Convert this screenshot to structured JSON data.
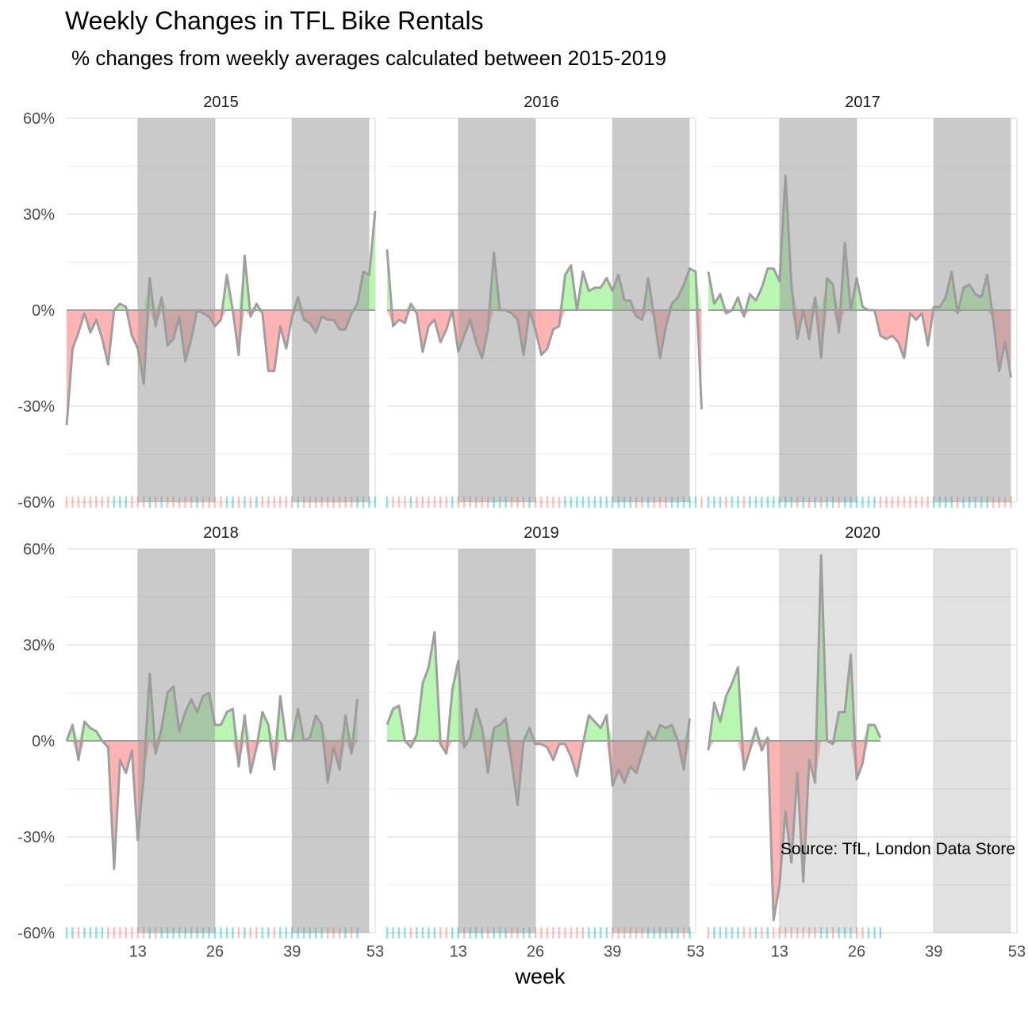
{
  "title": "Weekly Changes in TFL Bike Rentals",
  "subtitle": "% changes from weekly averages calculated between 2015-2019",
  "caption": "Source: TfL, London Data Store",
  "colors": {
    "positive": "#b7f7b0",
    "negative": "#ffb3b3",
    "line": "#9f9f9f",
    "shade": "#9a9a9a",
    "rug_positive": "#00bfc4",
    "rug_negative": "#f8766d",
    "grid": "#ebebeb"
  },
  "chart_data": {
    "type": "area",
    "facet_by": "year",
    "xlabel": "week",
    "ylabel": "",
    "x_ticks": [
      13,
      26,
      39,
      53
    ],
    "xlim": [
      1,
      53
    ],
    "y_ticks": [
      -60,
      -30,
      0,
      30,
      60
    ],
    "y_tick_labels": [
      "-60%",
      "-30%",
      "0%",
      "30%",
      "60%"
    ],
    "ylim": [
      -60,
      60
    ],
    "shaded_week_ranges": [
      [
        13,
        26
      ],
      [
        39,
        52
      ]
    ],
    "rug": "weekly tick marks at -60%, blue when above average and red when below",
    "panels": [
      {
        "year": "2015",
        "values": [
          -36,
          -12,
          -7,
          -1,
          -7,
          -3,
          -9,
          -17,
          0,
          2,
          1,
          -8,
          -12,
          -23,
          10,
          -5,
          4,
          -11,
          -9,
          -2,
          -16,
          -9,
          0,
          -1,
          -2,
          -5,
          -3,
          11,
          0,
          -14,
          17,
          -2,
          2,
          -1,
          -19,
          -19,
          -5,
          -12,
          -2,
          4,
          -3,
          -4,
          -7,
          -2,
          -3,
          -3,
          -6,
          -6,
          -1,
          2,
          12,
          11,
          31
        ]
      },
      {
        "year": "2016",
        "values": [
          19,
          -5,
          -3,
          -4,
          2,
          -1,
          -13,
          -5,
          -3,
          -10,
          -6,
          0,
          -13,
          -8,
          -3,
          -10,
          -15,
          -6,
          18,
          0,
          0,
          -1,
          -3,
          -14,
          0,
          -6,
          -14,
          -12,
          -6,
          -5,
          11,
          14,
          0,
          12,
          6,
          7,
          7,
          10,
          6,
          11,
          3,
          3,
          -2,
          -3,
          10,
          -2,
          -15,
          -5,
          2,
          4,
          8,
          13,
          12,
          -31
        ]
      },
      {
        "year": "2017",
        "values": [
          12,
          2,
          5,
          -1,
          0,
          4,
          -2,
          5,
          3,
          7,
          13,
          13,
          9,
          42,
          8,
          -9,
          0,
          -9,
          4,
          -15,
          10,
          8,
          -7,
          21,
          0,
          10,
          1,
          0,
          0,
          -8,
          -9,
          -8,
          -10,
          -15,
          -1,
          -3,
          -1,
          -11,
          1,
          1,
          4,
          12,
          -1,
          7,
          8,
          5,
          4,
          11,
          -3,
          -19,
          -10,
          -21
        ]
      },
      {
        "year": "2018",
        "values": [
          0,
          5,
          -6,
          6,
          4,
          3,
          0,
          -2,
          -40,
          -6,
          -10,
          -3,
          -31,
          -11,
          21,
          -4,
          4,
          15,
          17,
          3,
          9,
          13,
          9,
          14,
          15,
          5,
          5,
          9,
          10,
          -8,
          8,
          -10,
          -2,
          9,
          5,
          -9,
          14,
          0,
          0,
          10,
          0,
          1,
          8,
          5,
          -13,
          -2,
          -9,
          8,
          -4,
          13
        ]
      },
      {
        "year": "2019",
        "values": [
          5,
          10,
          11,
          0,
          -2,
          2,
          18,
          23,
          34,
          -1,
          -4,
          16,
          25,
          -2,
          1,
          10,
          4,
          -10,
          4,
          5,
          7,
          -7,
          -20,
          0,
          4,
          -1,
          -1,
          -2,
          -6,
          -1,
          -1,
          -5,
          -11,
          -1,
          8,
          6,
          4,
          8,
          -14,
          -9,
          -13,
          -8,
          -10,
          -4,
          3,
          0,
          5,
          4,
          5,
          0,
          -9,
          7
        ]
      },
      {
        "year": "2020",
        "values": [
          -3,
          12,
          6,
          14,
          18,
          23,
          -9,
          -3,
          4,
          -3,
          1,
          -56,
          -45,
          -22,
          -38,
          -10,
          -44,
          -6,
          -13,
          58,
          0,
          -1,
          9,
          9,
          27,
          -12,
          -7,
          5,
          5,
          1
        ]
      }
    ]
  }
}
